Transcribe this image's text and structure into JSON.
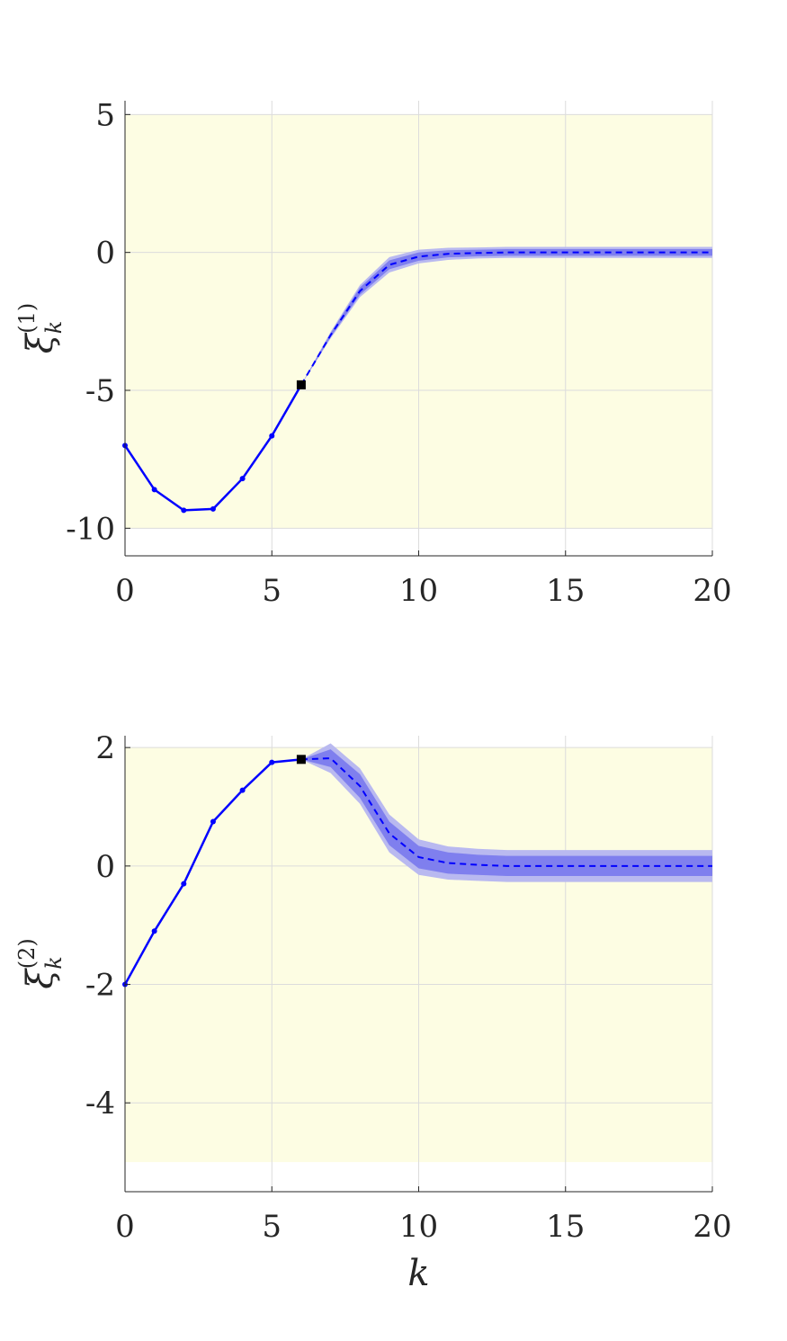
{
  "chart_data": [
    {
      "type": "line",
      "ylabel": "ξ",
      "ylabel_sub": "k",
      "ylabel_sup": "(1)",
      "xlabel": "",
      "xlim": [
        0,
        20
      ],
      "ylim": [
        -11,
        5.5
      ],
      "xticks": [
        "0",
        "5",
        "10",
        "15",
        "20"
      ],
      "yticks": [
        "5",
        "0",
        "-5",
        "-10"
      ],
      "ytick_values": [
        5,
        0,
        -5,
        -10
      ],
      "constraint_region": {
        "y_min": -10,
        "y_max": 5,
        "color": "#fdfde3"
      },
      "grid": true,
      "colors": {
        "line": "#0000ff",
        "band_outer": "#b9b9f0",
        "band_inner": "#7f7fee",
        "marker": "#000000"
      },
      "series": [
        {
          "style": "solid-with-dots",
          "x": [
            0,
            1,
            2,
            3,
            4,
            5,
            6
          ],
          "y": [
            -7.0,
            -8.6,
            -9.35,
            -9.3,
            -8.2,
            -6.65,
            -4.8
          ]
        },
        {
          "style": "dashed-prediction",
          "x": [
            6,
            7,
            8,
            9,
            10,
            11,
            12,
            13,
            14,
            15,
            16,
            17,
            18,
            19,
            20
          ],
          "y": [
            -4.8,
            -3.0,
            -1.4,
            -0.45,
            -0.15,
            -0.05,
            -0.02,
            0,
            0,
            0,
            0,
            0,
            0,
            0,
            0
          ],
          "band_outer": [
            0,
            0.12,
            0.22,
            0.28,
            0.25,
            0.22,
            0.2,
            0.2,
            0.2,
            0.2,
            0.2,
            0.2,
            0.2,
            0.2,
            0.2
          ],
          "band_inner": [
            0,
            0.07,
            0.13,
            0.16,
            0.15,
            0.13,
            0.12,
            0.12,
            0.12,
            0.12,
            0.12,
            0.12,
            0.12,
            0.12,
            0.12
          ]
        }
      ],
      "current_marker": {
        "x": 6,
        "y": -4.8
      }
    },
    {
      "type": "line",
      "ylabel": "ξ",
      "ylabel_sub": "k",
      "ylabel_sup": "(2)",
      "xlabel": "k",
      "xlim": [
        0,
        20
      ],
      "ylim": [
        -5.5,
        2.2
      ],
      "xticks": [
        "0",
        "5",
        "10",
        "15",
        "20"
      ],
      "yticks": [
        "2",
        "0",
        "-2",
        "-4"
      ],
      "ytick_values": [
        2,
        0,
        -2,
        -4
      ],
      "constraint_region": {
        "y_min": -5,
        "y_max": 2,
        "color": "#fdfde3"
      },
      "grid": true,
      "colors": {
        "line": "#0000ff",
        "band_outer": "#b9b9f0",
        "band_inner": "#7f7fee",
        "marker": "#000000"
      },
      "series": [
        {
          "style": "solid-with-dots",
          "x": [
            0,
            1,
            2,
            3,
            4,
            5,
            6
          ],
          "y": [
            -2.0,
            -1.1,
            -0.3,
            0.75,
            1.28,
            1.75,
            1.8
          ]
        },
        {
          "style": "dashed-prediction",
          "x": [
            6,
            7,
            8,
            9,
            10,
            11,
            12,
            13,
            14,
            15,
            16,
            17,
            18,
            19,
            20
          ],
          "y": [
            1.8,
            1.82,
            1.35,
            0.55,
            0.15,
            0.05,
            0.02,
            0,
            0,
            0,
            0,
            0,
            0,
            0,
            0
          ],
          "band_outer": [
            0,
            0.25,
            0.3,
            0.32,
            0.3,
            0.28,
            0.27,
            0.27,
            0.27,
            0.27,
            0.27,
            0.27,
            0.27,
            0.27,
            0.27
          ],
          "band_inner": [
            0,
            0.15,
            0.2,
            0.2,
            0.19,
            0.18,
            0.17,
            0.17,
            0.17,
            0.17,
            0.17,
            0.17,
            0.17,
            0.17,
            0.17
          ]
        }
      ],
      "current_marker": {
        "x": 6,
        "y": 1.8
      }
    }
  ]
}
